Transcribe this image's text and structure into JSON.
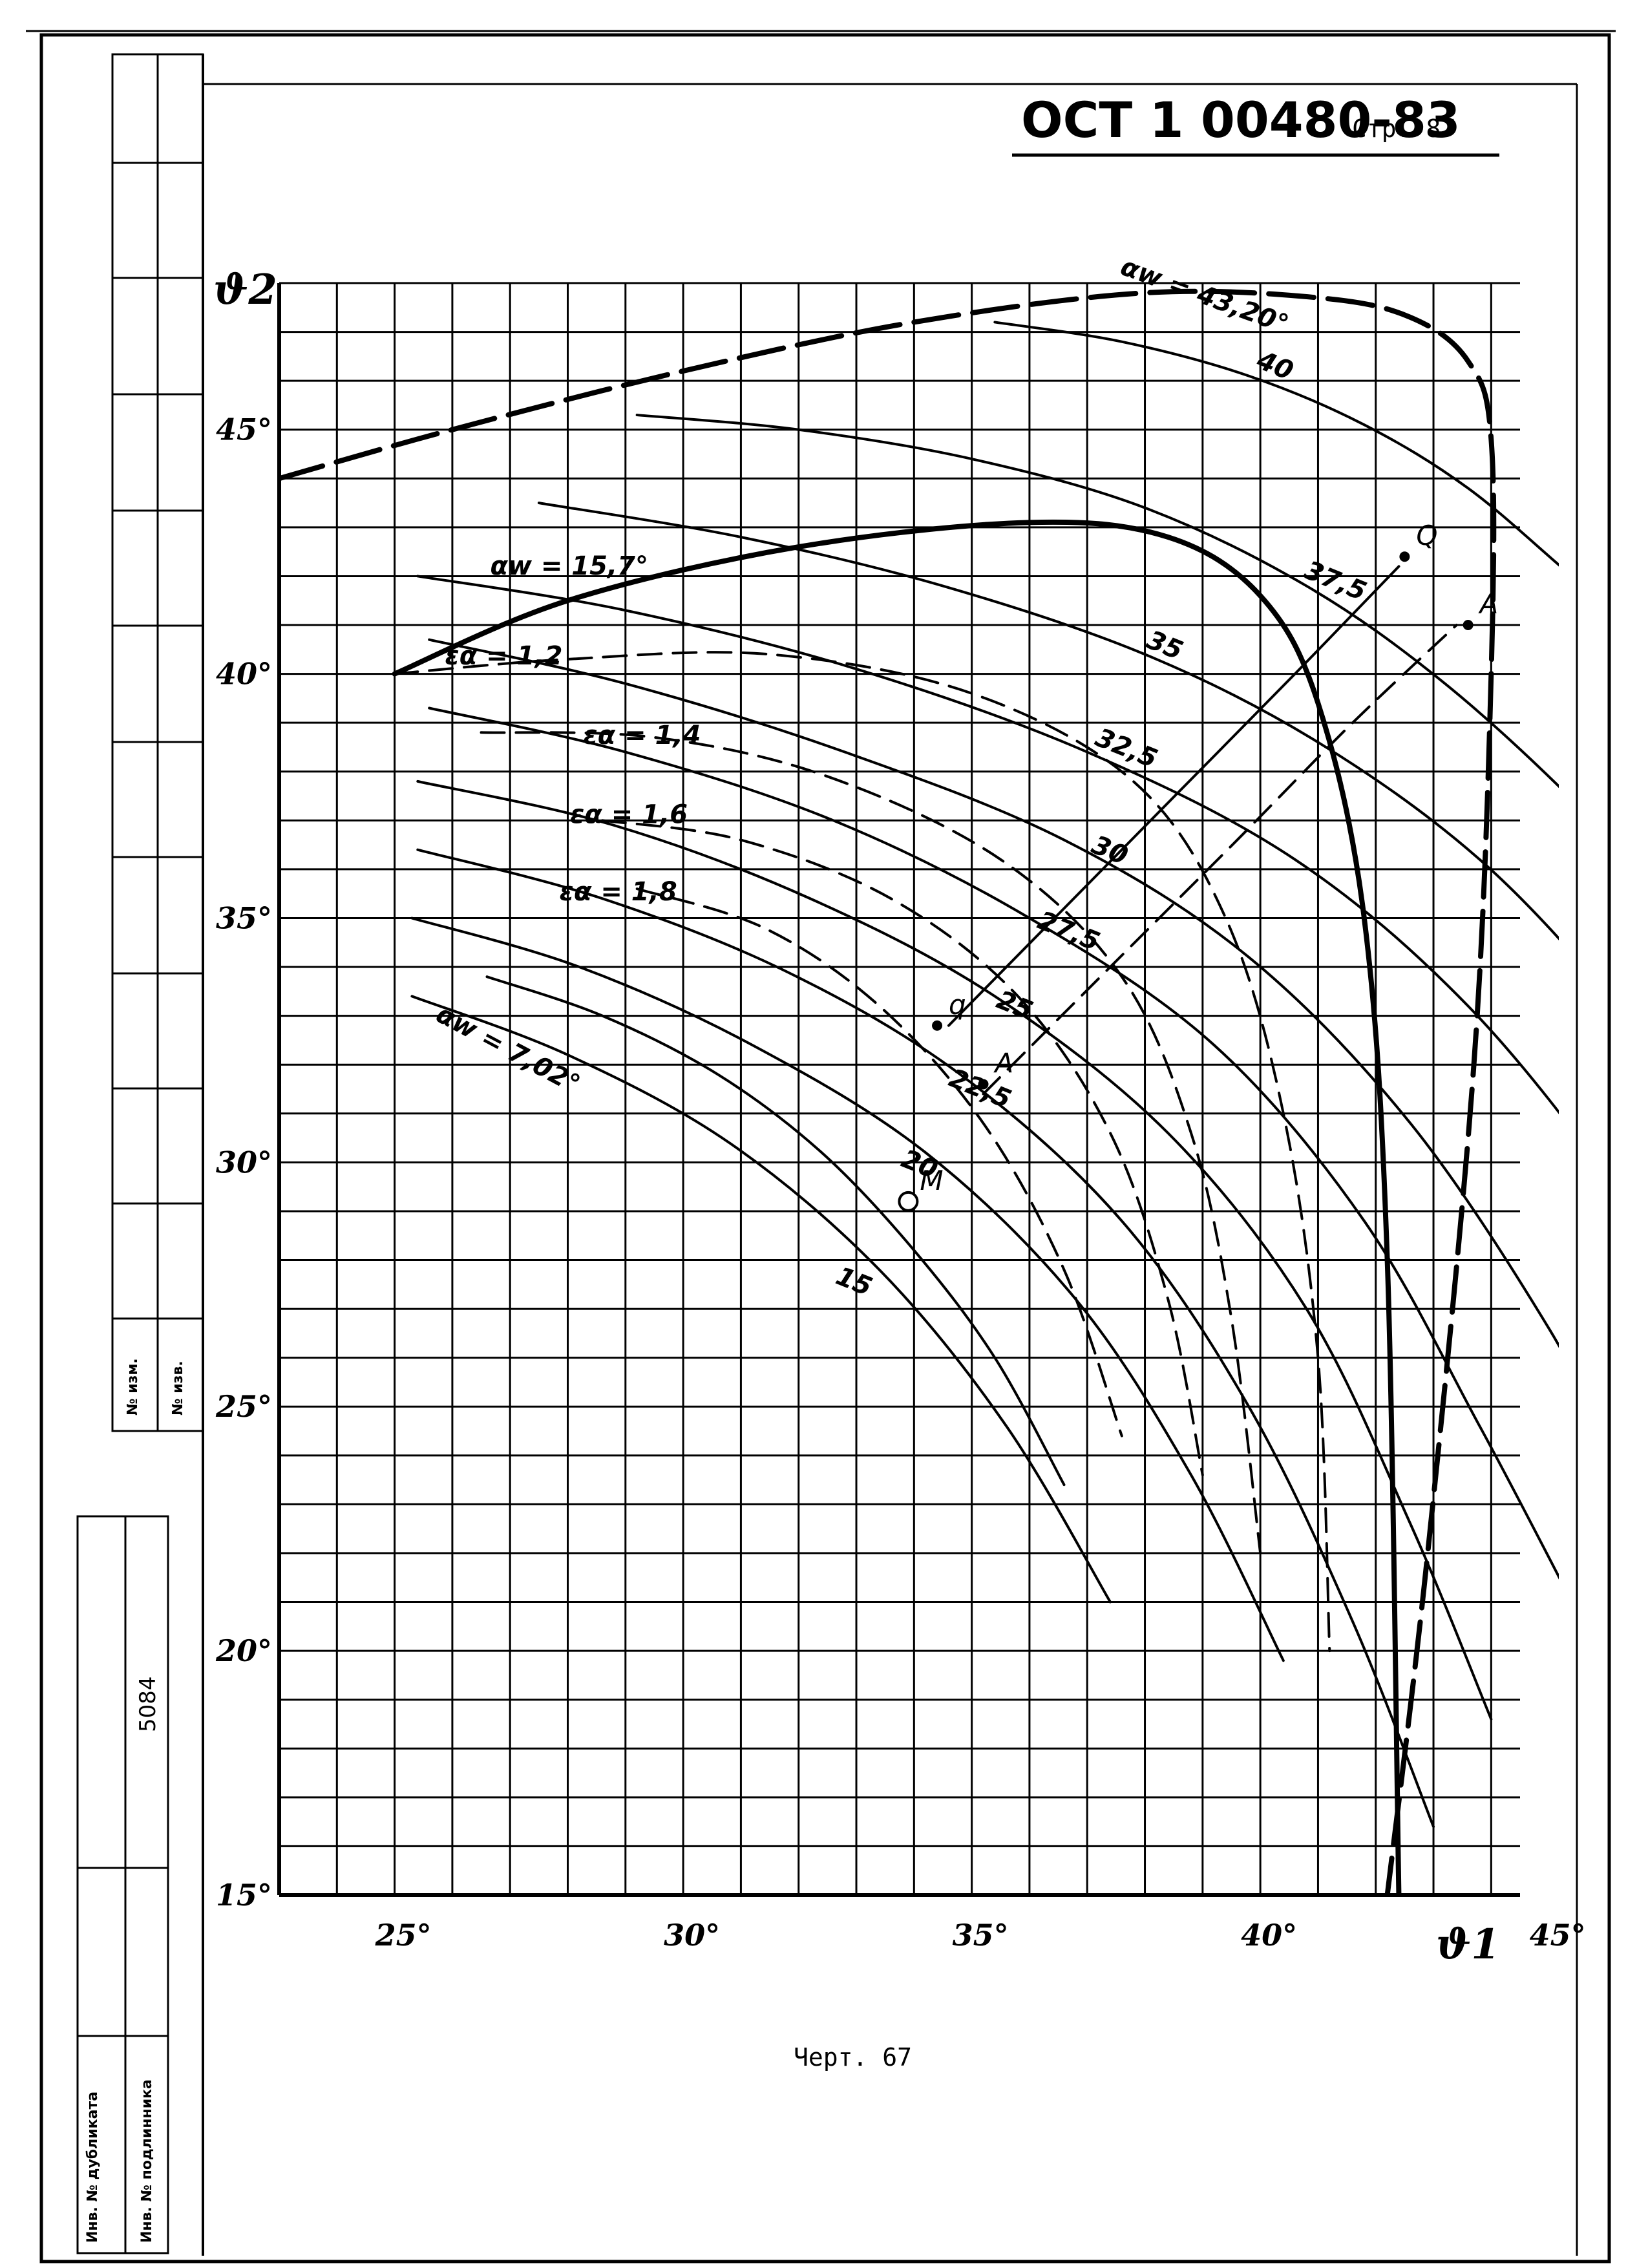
{
  "header": {
    "code": "ОСТ 1 00480-83",
    "page": "Стр. 87"
  },
  "caption": "Черт. 67",
  "side_stamp": {
    "upper": [
      "№ изм.",
      "№ изв."
    ],
    "lower_number": "5084",
    "lower": [
      "Инв. № дубликата",
      "Инв. № подлинника"
    ]
  },
  "chart_data": {
    "type": "line",
    "xlabel": "ϑ1",
    "ylabel": "ϑ2",
    "xlim": [
      23,
      44.5
    ],
    "ylim": [
      15,
      48
    ],
    "x_ticks": [
      25,
      30,
      35,
      40,
      45
    ],
    "x_tick_labels": [
      "25°",
      "30°",
      "35°",
      "40°",
      "45°"
    ],
    "y_ticks": [
      15,
      20,
      25,
      30,
      35,
      40,
      45
    ],
    "y_tick_labels": [
      "15°",
      "20°",
      "25°",
      "30°",
      "35°",
      "40°",
      "45°"
    ],
    "grid": true,
    "series": [
      {
        "name": "40",
        "style": "solid",
        "x": [
          35.4,
          37.6,
          39.8,
          41.8,
          43.6,
          45.4,
          47.4
        ],
        "y": [
          47.2,
          46.8,
          46.1,
          45.1,
          43.8,
          42.0,
          40.0
        ]
      },
      {
        "name": "37,5",
        "style": "solid",
        "x": [
          29.2,
          32.0,
          35.0,
          38.0,
          40.8,
          43.2,
          45.6,
          47.6
        ],
        "y": [
          45.3,
          45.0,
          44.4,
          43.4,
          41.8,
          39.8,
          37.2,
          34.6
        ]
      },
      {
        "name": "35",
        "style": "solid",
        "x": [
          27.5,
          31.0,
          34.5,
          38.0,
          41.0,
          43.8,
          46.2,
          48.3
        ],
        "y": [
          43.5,
          42.8,
          41.8,
          40.4,
          38.6,
          36.2,
          33.2,
          30.0
        ]
      },
      {
        "name": "32,5",
        "style": "solid",
        "x": [
          25.4,
          29.0,
          33.0,
          37.0,
          40.6,
          43.6,
          46.2,
          47.6
        ],
        "y": [
          42.0,
          41.3,
          40.1,
          38.4,
          36.2,
          33.2,
          29.4,
          26.6
        ]
      },
      {
        "name": "30",
        "style": "solid",
        "x": [
          25.6,
          29.0,
          32.8,
          36.6,
          39.8,
          42.6,
          45.0,
          46.2
        ],
        "y": [
          40.7,
          39.8,
          38.4,
          36.6,
          34.2,
          30.8,
          26.6,
          23.8
        ]
      },
      {
        "name": "27,5",
        "style": "solid",
        "x": [
          25.6,
          29.0,
          32.6,
          36.0,
          39.2,
          41.8,
          43.8,
          45.4
        ],
        "y": [
          39.3,
          38.4,
          37.0,
          35.0,
          32.4,
          28.8,
          24.6,
          21.0
        ]
      },
      {
        "name": "25",
        "style": "solid",
        "x": [
          25.4,
          28.8,
          32.2,
          35.4,
          38.4,
          40.8,
          42.6,
          44.0
        ],
        "y": [
          37.8,
          36.9,
          35.4,
          33.4,
          30.6,
          27.0,
          22.6,
          18.6
        ]
      },
      {
        "name": "22,5",
        "style": "solid",
        "x": [
          25.4,
          28.6,
          31.8,
          34.8,
          37.6,
          39.8,
          41.6,
          43.0
        ],
        "y": [
          36.4,
          35.4,
          33.9,
          31.8,
          28.8,
          25.0,
          20.6,
          16.4
        ]
      },
      {
        "name": "20",
        "style": "solid",
        "x": [
          25.3,
          28.2,
          31.2,
          34.2,
          36.8,
          38.8,
          40.4
        ],
        "y": [
          35.0,
          34.0,
          32.4,
          30.2,
          27.2,
          23.6,
          19.8
        ]
      },
      {
        "name": "15",
        "style": "solid",
        "x": [
          25.3,
          28.0,
          30.8,
          33.4,
          35.6,
          37.4
        ],
        "y": [
          33.4,
          32.2,
          30.4,
          27.8,
          24.6,
          21.0
        ]
      },
      {
        "name": "αw = 43,20°",
        "style": "dashed-thick",
        "x": [
          23,
          26.0,
          30.0,
          34.0,
          38.0,
          41.0,
          42.6,
          43.6,
          44.0,
          44.0,
          43.7,
          42.9,
          42.2
        ],
        "y": [
          44.0,
          45.0,
          46.2,
          47.2,
          47.8,
          47.7,
          47.3,
          46.4,
          44.8,
          40.0,
          32.0,
          22.0,
          15.0
        ]
      },
      {
        "name": "αw = 15,7°",
        "style": "solid-thick",
        "x": [
          25.0,
          28.0,
          32.0,
          36.0,
          38.4,
          40.0,
          41.0,
          41.8,
          42.2,
          42.4
        ],
        "y": [
          40.0,
          41.5,
          42.6,
          43.1,
          42.8,
          41.6,
          39.4,
          35.0,
          28.0,
          15.0
        ]
      },
      {
        "name": "εα = 1,2",
        "style": "dashed",
        "x": [
          25.0,
          28.0,
          31.5,
          35.0,
          37.8,
          39.4,
          40.4,
          41.0,
          41.2
        ],
        "y": [
          40.0,
          40.3,
          40.4,
          39.6,
          37.8,
          35.0,
          31.0,
          26.0,
          20.0
        ]
      },
      {
        "name": "εα = 1,4",
        "style": "dashed",
        "x": [
          26.5,
          29.5,
          32.5,
          35.5,
          37.6,
          38.8,
          39.5,
          40.0
        ],
        "y": [
          38.8,
          38.7,
          37.9,
          36.2,
          33.8,
          30.6,
          26.8,
          22.0
        ]
      },
      {
        "name": "εα = 1,6",
        "style": "dashed",
        "x": [
          28.6,
          31.0,
          33.6,
          35.8,
          37.4,
          38.4,
          39.0
        ],
        "y": [
          37.0,
          36.6,
          35.4,
          33.4,
          30.6,
          27.2,
          23.6
        ]
      },
      {
        "name": "εα = 1,8",
        "style": "dashed",
        "x": [
          29.2,
          31.4,
          33.4,
          35.2,
          36.6,
          37.6
        ],
        "y": [
          35.6,
          34.8,
          33.2,
          30.8,
          27.8,
          24.4
        ]
      },
      {
        "name": "αw = 7,02°",
        "style": "solid",
        "x": [
          26.6,
          28.6,
          30.6,
          32.4,
          34.0,
          35.4,
          36.6
        ],
        "y": [
          33.8,
          33.0,
          31.8,
          30.2,
          28.2,
          26.0,
          23.4
        ]
      },
      {
        "name": "Q–q",
        "style": "solid",
        "x": [
          34.6,
          36.6,
          38.6,
          40.6,
          42.4
        ],
        "y": [
          32.8,
          35.2,
          37.6,
          40.0,
          42.2
        ]
      },
      {
        "name": "A–A",
        "style": "dashed",
        "x": [
          35.2,
          37.4,
          39.6,
          41.6,
          43.4
        ],
        "y": [
          31.4,
          34.0,
          36.6,
          39.0,
          41.0
        ]
      }
    ],
    "points": [
      {
        "label": "Q",
        "x": 42.5,
        "y": 42.4
      },
      {
        "label": "A",
        "x": 43.6,
        "y": 41.0
      },
      {
        "label": "q",
        "x": 34.4,
        "y": 32.8
      },
      {
        "label": "A",
        "x": 35.2,
        "y": 31.6
      },
      {
        "label": "M",
        "x": 33.9,
        "y": 29.2
      }
    ]
  }
}
